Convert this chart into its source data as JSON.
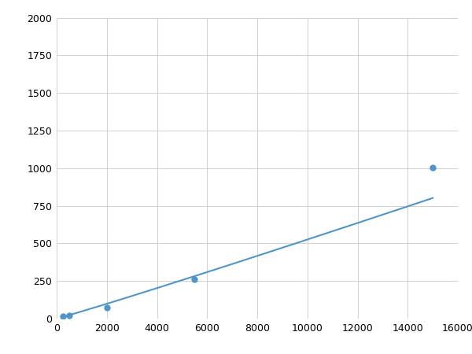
{
  "x": [
    250,
    500,
    2000,
    5500,
    15000
  ],
  "y": [
    15,
    20,
    75,
    260,
    1005
  ],
  "line_color": "#4f96c8",
  "marker_color": "#4f96c8",
  "marker_size": 5,
  "xlim": [
    0,
    16000
  ],
  "ylim": [
    0,
    2000
  ],
  "xticks": [
    0,
    2000,
    4000,
    6000,
    8000,
    10000,
    12000,
    14000,
    16000
  ],
  "yticks": [
    0,
    250,
    500,
    750,
    1000,
    1250,
    1500,
    1750,
    2000
  ],
  "grid_color": "#d0d0d0",
  "background_color": "#ffffff",
  "fig_background_color": "#ffffff"
}
